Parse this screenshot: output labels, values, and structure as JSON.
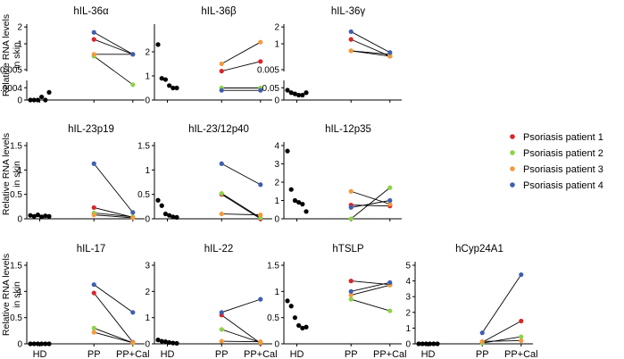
{
  "ylabel_lines": [
    "Relative RNA levels",
    "in skin"
  ],
  "colors": {
    "patient1": "#d9262a",
    "patient2": "#8cd24a",
    "patient3": "#f39a3d",
    "patient4": "#3e5fb0",
    "hd": "#000000"
  },
  "legend": [
    {
      "label": "Psoriasis patient 1",
      "color": "#d9262a"
    },
    {
      "label": "Psoriasis patient 2",
      "color": "#8cd24a"
    },
    {
      "label": "Psoriasis patient 3",
      "color": "#f39a3d"
    },
    {
      "label": "Psoriasis patient 4",
      "color": "#3e5fb0"
    }
  ],
  "chart_data": [
    {
      "type": "scatter",
      "title": "hIL-36α",
      "categories": [
        "HD",
        "PP",
        "PP+Cal"
      ],
      "axis_break": true,
      "yticks_lower": [
        "0",
        "0.0004"
      ],
      "yticks_upper": [
        "0.005",
        "1",
        "2"
      ],
      "hd": [
        0.0,
        0.0,
        0.0,
        0.0001,
        0.0,
        0.00025
      ],
      "patients": [
        [
          1.2,
          0.65
        ],
        [
          0.6,
          0.0005
        ],
        [
          0.65,
          0.65
        ],
        [
          1.6,
          0.65
        ]
      ]
    },
    {
      "type": "scatter",
      "title": "hIL-36β",
      "categories": [
        "HD",
        "PP",
        "PP+Cal"
      ],
      "yticks": [
        "0",
        "1",
        "2"
      ],
      "ylim": [
        0,
        3
      ],
      "hd": [
        2.3,
        0.9,
        0.85,
        0.6,
        0.5,
        0.5
      ],
      "patients": [
        [
          1.2,
          1.6
        ],
        [
          0.5,
          0.5
        ],
        [
          1.5,
          2.4
        ],
        [
          0.4,
          0.4
        ]
      ]
    },
    {
      "type": "scatter",
      "title": "hIL-36γ",
      "categories": [
        "HD",
        "PP",
        "PP+Cal"
      ],
      "axis_break": true,
      "yticks_lower": [
        "0",
        "0.05"
      ],
      "yticks_upper": [
        "0.005",
        "1",
        "2"
      ],
      "hd": [
        0.04,
        0.03,
        0.025,
        0.02,
        0.02,
        0.03
      ],
      "patients": [
        [
          1.2,
          0.6
        ],
        [
          0.75,
          0.65
        ],
        [
          0.75,
          0.6
        ],
        [
          1.65,
          0.7
        ]
      ]
    },
    {
      "type": "scatter",
      "title": "hIL-23p19",
      "categories": [
        "HD",
        "PP",
        "PP+Cal"
      ],
      "yticks": [
        "0",
        "0.5",
        "1",
        "1.5"
      ],
      "ylim": [
        0,
        1.5
      ],
      "hd": [
        0.07,
        0.05,
        0.08,
        0.04,
        0.06,
        0.05
      ],
      "patients": [
        [
          0.23,
          0.03
        ],
        [
          0.12,
          0.04
        ],
        [
          0.08,
          0.02
        ],
        [
          1.13,
          0.13
        ]
      ]
    },
    {
      "type": "scatter",
      "title": "hIL-23/12p40",
      "categories": [
        "HD",
        "PP",
        "PP+Cal"
      ],
      "yticks": [
        "0",
        "0.5",
        "1",
        "1.5"
      ],
      "ylim": [
        0,
        1.5
      ],
      "hd": [
        0.38,
        0.27,
        0.1,
        0.07,
        0.04,
        0.03
      ],
      "patients": [
        [
          0.5,
          0.0
        ],
        [
          0.52,
          0.02
        ],
        [
          0.1,
          0.08
        ],
        [
          1.13,
          0.7
        ]
      ]
    },
    {
      "type": "scatter",
      "title": "hIL-12p35",
      "categories": [
        "HD",
        "PP",
        "PP+Cal"
      ],
      "yticks": [
        "0",
        "1",
        "2",
        "3",
        "4"
      ],
      "ylim": [
        0,
        4
      ],
      "hd": [
        3.7,
        1.6,
        1.0,
        0.9,
        0.8,
        0.4
      ],
      "patients": [
        [
          0.75,
          0.7
        ],
        [
          0.0,
          1.7
        ],
        [
          1.5,
          0.8
        ],
        [
          0.62,
          1.0
        ]
      ]
    },
    {
      "type": "scatter",
      "title": "hIL-17",
      "categories": [
        "HD",
        "PP",
        "PP+Cal"
      ],
      "yticks": [
        "0",
        "0.5",
        "1",
        "1.5"
      ],
      "ylim": [
        0,
        1.5
      ],
      "hd": [
        0.0,
        0.0,
        0.0,
        0.0,
        0.0,
        0.0
      ],
      "patients": [
        [
          0.97,
          0.03
        ],
        [
          0.3,
          0.02
        ],
        [
          0.22,
          0.02
        ],
        [
          1.13,
          0.6
        ]
      ]
    },
    {
      "type": "scatter",
      "title": "hIL-22",
      "categories": [
        "HD",
        "PP",
        "PP+Cal"
      ],
      "yticks": [
        "0",
        "1",
        "2",
        "3"
      ],
      "ylim": [
        0,
        3
      ],
      "hd": [
        0.15,
        0.1,
        0.08,
        0.05,
        0.03,
        0.02
      ],
      "patients": [
        [
          1.1,
          0.02
        ],
        [
          0.55,
          0.05
        ],
        [
          0.1,
          0.08
        ],
        [
          1.2,
          1.7
        ]
      ]
    },
    {
      "type": "scatter",
      "title": "hTSLP",
      "categories": [
        "HD",
        "PP",
        "PP+Cal"
      ],
      "yticks": [
        "0",
        "0.5",
        "1",
        "1.5"
      ],
      "ylim": [
        0,
        1.5
      ],
      "hd": [
        0.82,
        0.72,
        0.5,
        0.35,
        0.3,
        0.32
      ],
      "patients": [
        [
          1.2,
          1.13
        ],
        [
          0.85,
          0.63
        ],
        [
          0.93,
          1.12
        ],
        [
          1.0,
          1.17
        ]
      ]
    },
    {
      "type": "scatter",
      "title": "hCyp24A1",
      "categories": [
        "HD",
        "PP",
        "PP+Cal"
      ],
      "yticks": [
        "0",
        "1",
        "2",
        "3",
        "4",
        "5"
      ],
      "ylim": [
        0,
        5
      ],
      "hd": [
        0.0,
        0.0,
        0.0,
        0.0,
        0.0,
        0.0
      ],
      "patients": [
        [
          0.1,
          1.45
        ],
        [
          0.05,
          0.45
        ],
        [
          0.15,
          0.2
        ],
        [
          0.7,
          4.4
        ]
      ]
    }
  ]
}
